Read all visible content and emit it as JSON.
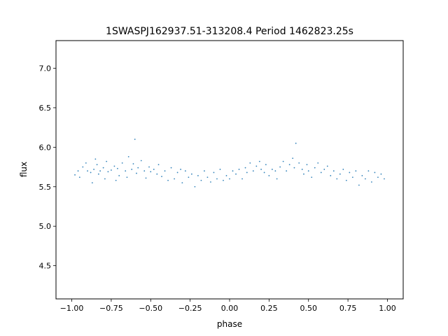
{
  "chart_data": {
    "type": "scatter",
    "title": "1SWASPJ162937.51-313208.4 Period 1462823.25s",
    "xlabel": "phase",
    "ylabel": "flux",
    "xlim": [
      -1.1,
      1.1
    ],
    "ylim": [
      4.08,
      7.35
    ],
    "xticks": [
      -1.0,
      -0.75,
      -0.5,
      -0.25,
      0.0,
      0.25,
      0.5,
      0.75,
      1.0
    ],
    "xtick_labels": [
      "−1.00",
      "−0.75",
      "−0.50",
      "−0.25",
      "0.00",
      "0.25",
      "0.50",
      "0.75",
      "1.00"
    ],
    "yticks": [
      4.5,
      5.0,
      5.5,
      6.0,
      6.5,
      7.0
    ],
    "ytick_labels": [
      "4.5",
      "5.0",
      "5.5",
      "6.0",
      "6.5",
      "7.0"
    ],
    "grid": false,
    "legend": "none",
    "point_color": "#1f77b4",
    "series": [
      {
        "x": [
          -0.98,
          -0.96,
          -0.95,
          -0.93,
          -0.91,
          -0.9,
          -0.88,
          -0.87,
          -0.86,
          -0.85,
          -0.84,
          -0.83,
          -0.82,
          -0.8,
          -0.79,
          -0.78,
          -0.77,
          -0.75,
          -0.73,
          -0.72,
          -0.71,
          -0.7,
          -0.68,
          -0.66,
          -0.65,
          -0.64,
          -0.62,
          -0.61,
          -0.6,
          -0.59,
          -0.58,
          -0.56,
          -0.54,
          -0.53,
          -0.51,
          -0.5,
          -0.48,
          -0.46,
          -0.45,
          -0.43,
          -0.41,
          -0.39,
          -0.37,
          -0.35,
          -0.33,
          -0.31,
          -0.3,
          -0.28,
          -0.26,
          -0.24,
          -0.22,
          -0.2,
          -0.18,
          -0.16,
          -0.14,
          -0.12,
          -0.1,
          -0.08,
          -0.06,
          -0.04,
          -0.02,
          0.0,
          0.02,
          0.04,
          0.06,
          0.08,
          0.1,
          0.11,
          0.13,
          0.15,
          0.17,
          0.19,
          0.2,
          0.22,
          0.23,
          0.25,
          0.27,
          0.29,
          0.3,
          0.32,
          0.34,
          0.36,
          0.38,
          0.4,
          0.41,
          0.42,
          0.44,
          0.46,
          0.47,
          0.49,
          0.5,
          0.52,
          0.54,
          0.56,
          0.58,
          0.6,
          0.62,
          0.64,
          0.66,
          0.68,
          0.7,
          0.72,
          0.74,
          0.76,
          0.78,
          0.8,
          0.82,
          0.84,
          0.86,
          0.88,
          0.9,
          0.92,
          0.94,
          0.96,
          0.98
        ],
        "y": [
          5.65,
          5.7,
          5.62,
          5.75,
          5.8,
          5.7,
          5.68,
          5.55,
          5.72,
          5.85,
          5.78,
          5.66,
          5.7,
          5.74,
          5.6,
          5.82,
          5.69,
          5.71,
          5.76,
          5.58,
          5.73,
          5.64,
          5.8,
          5.7,
          5.62,
          5.88,
          5.72,
          5.79,
          6.1,
          5.67,
          5.74,
          5.83,
          5.7,
          5.61,
          5.75,
          5.69,
          5.72,
          5.66,
          5.78,
          5.63,
          5.7,
          5.58,
          5.74,
          5.6,
          5.68,
          5.72,
          5.55,
          5.7,
          5.62,
          5.66,
          5.5,
          5.64,
          5.58,
          5.7,
          5.62,
          5.56,
          5.68,
          5.6,
          5.72,
          5.58,
          5.64,
          5.6,
          5.7,
          5.66,
          5.72,
          5.6,
          5.74,
          5.68,
          5.8,
          5.7,
          5.76,
          5.82,
          5.72,
          5.68,
          5.78,
          5.64,
          5.72,
          5.7,
          5.6,
          5.75,
          5.82,
          5.7,
          5.78,
          5.86,
          5.74,
          6.05,
          5.8,
          5.72,
          5.66,
          5.78,
          5.7,
          5.62,
          5.74,
          5.8,
          5.68,
          5.72,
          5.76,
          5.64,
          5.7,
          5.6,
          5.66,
          5.72,
          5.58,
          5.68,
          5.62,
          5.7,
          5.52,
          5.64,
          5.6,
          5.7,
          5.56,
          5.68,
          5.62,
          5.66,
          5.6
        ]
      }
    ]
  }
}
